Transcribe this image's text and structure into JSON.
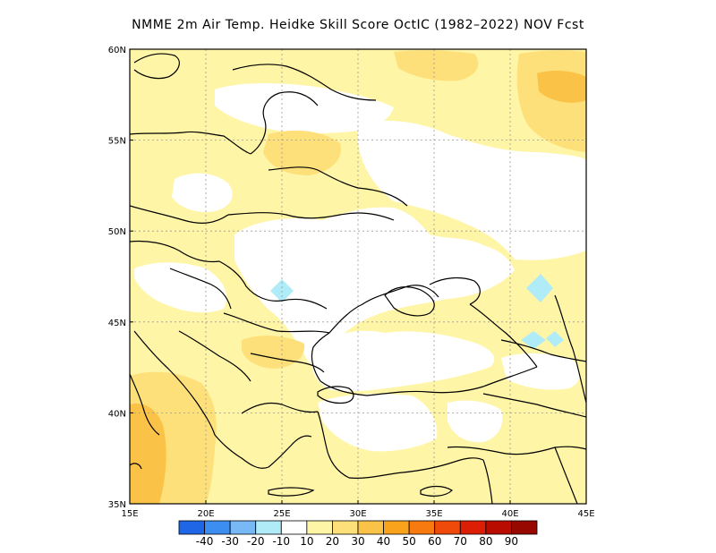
{
  "title": "NMME  2m Air Temp. Heidke Skill Score OctIC (1982–2022) NOV Fcst",
  "map": {
    "lon_range": [
      15,
      45
    ],
    "lat_range": [
      35,
      60
    ],
    "lon_ticks": [
      {
        "value": 15,
        "label": "15E"
      },
      {
        "value": 20,
        "label": "20E"
      },
      {
        "value": 25,
        "label": "25E"
      },
      {
        "value": 30,
        "label": "30E"
      },
      {
        "value": 35,
        "label": "35E"
      },
      {
        "value": 40,
        "label": "40E"
      },
      {
        "value": 45,
        "label": "45E"
      }
    ],
    "lat_ticks": [
      {
        "value": 35,
        "label": "35N"
      },
      {
        "value": 40,
        "label": "40N"
      },
      {
        "value": 45,
        "label": "45N"
      },
      {
        "value": 50,
        "label": "50N"
      },
      {
        "value": 55,
        "label": "55N"
      },
      {
        "value": 60,
        "label": "60N"
      }
    ],
    "grid": "dotted"
  },
  "colorbar": {
    "colors": [
      "#1f66e6",
      "#3c8ef0",
      "#78b8f5",
      "#afecf8",
      "#ffffff",
      "#fff5a6",
      "#fde07a",
      "#fbc248",
      "#f9a21c",
      "#f67a10",
      "#f04a0a",
      "#dc1e05",
      "#b80c00",
      "#960800"
    ],
    "labels": [
      "-40",
      "-30",
      "-20",
      "-10",
      "10",
      "20",
      "30",
      "40",
      "50",
      "60",
      "70",
      "80",
      "90"
    ]
  },
  "chart_data": {
    "type": "heatmap",
    "title": "NMME  2m Air Temp. Heidke Skill Score OctIC (1982–2022) NOV Fcst",
    "x_range": [
      15,
      45
    ],
    "y_range": [
      35,
      60
    ],
    "levels": [
      -40,
      -30,
      -20,
      -10,
      10,
      20,
      30,
      40,
      50,
      60,
      70,
      80,
      90
    ],
    "regions": [
      {
        "class": "10-20",
        "lon": [
          15,
          45
        ],
        "lat": [
          35,
          60
        ],
        "note": "base"
      },
      {
        "class": "-10-10",
        "lon": [
          26,
          32
        ],
        "lat": [
          43,
          53
        ]
      },
      {
        "class": "-10-10",
        "lon": [
          31,
          40
        ],
        "lat": [
          41,
          45
        ]
      },
      {
        "class": "-10-10",
        "lon": [
          32,
          43
        ],
        "lat": [
          45,
          51
        ]
      },
      {
        "class": "-10-10",
        "lon": [
          36,
          45
        ],
        "lat": [
          50,
          55
        ]
      },
      {
        "class": "-10-10",
        "lon": [
          20,
          30
        ],
        "lat": [
          55,
          58
        ]
      },
      {
        "class": "-10-10",
        "lon": [
          17,
          24
        ],
        "lat": [
          43,
          48
        ]
      },
      {
        "class": "-10-10",
        "lon": [
          31,
          39
        ],
        "lat": [
          36,
          40
        ]
      },
      {
        "class": "20-30",
        "lon": [
          15,
          22
        ],
        "lat": [
          35,
          43
        ]
      },
      {
        "class": "30-40",
        "lon": [
          15,
          18
        ],
        "lat": [
          35,
          41
        ]
      },
      {
        "class": "20-30",
        "lon": [
          41,
          45
        ],
        "lat": [
          55,
          60
        ]
      },
      {
        "class": "30-40",
        "lon": [
          42,
          45
        ],
        "lat": [
          57,
          59
        ]
      },
      {
        "class": "20-30",
        "lon": [
          32,
          38
        ],
        "lat": [
          57,
          60
        ]
      },
      {
        "class": "-20--10",
        "lon": [
          25,
          26
        ],
        "lat": [
          46,
          47
        ]
      },
      {
        "class": "-20--10",
        "lon": [
          41,
          43
        ],
        "lat": [
          46,
          47
        ]
      },
      {
        "class": "-20--10",
        "lon": [
          40,
          42
        ],
        "lat": [
          43,
          44
        ]
      }
    ]
  }
}
